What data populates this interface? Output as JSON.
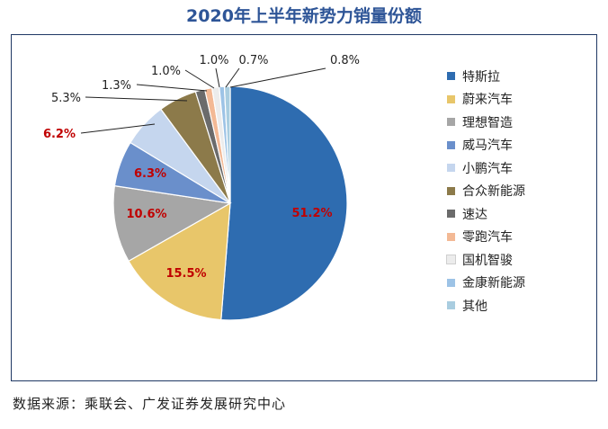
{
  "chart_data": {
    "type": "pie",
    "title": "2020年上半年新势力销量份额",
    "legend_position": "right",
    "slices": [
      {
        "name": "特斯拉",
        "value": 51.2,
        "label": "51.2%",
        "color": "#2e6cb0",
        "label_color": "#c00000",
        "label_bold": true
      },
      {
        "name": "蔚来汽车",
        "value": 15.5,
        "label": "15.5%",
        "color": "#e8c66a",
        "label_color": "#c00000",
        "label_bold": true
      },
      {
        "name": "理想智造",
        "value": 10.6,
        "label": "10.6%",
        "color": "#a6a6a6",
        "label_color": "#c00000",
        "label_bold": true
      },
      {
        "name": "威马汽车",
        "value": 6.3,
        "label": "6.3%",
        "color": "#6a8fcb",
        "label_color": "#c00000",
        "label_bold": true
      },
      {
        "name": "小鹏汽车",
        "value": 6.2,
        "label": "6.2%",
        "color": "#c5d6ee",
        "label_color": "#c00000",
        "label_bold": true
      },
      {
        "name": "合众新能源",
        "value": 5.3,
        "label": "5.3%",
        "color": "#8c7a4a",
        "label_color": "#222222",
        "label_bold": false
      },
      {
        "name": "速达",
        "value": 1.3,
        "label": "1.3%",
        "color": "#6b6b6b",
        "label_color": "#222222",
        "label_bold": false
      },
      {
        "name": "零跑汽车",
        "value": 1.0,
        "label": "1.0%",
        "color": "#f3b995",
        "label_color": "#222222",
        "label_bold": false
      },
      {
        "name": "国机智骏",
        "value": 1.0,
        "label": "1.0%",
        "color": "#ececec",
        "label_color": "#222222",
        "label_bold": false
      },
      {
        "name": "金康新能源",
        "value": 0.7,
        "label": "0.7%",
        "color": "#9dc3e6",
        "label_color": "#222222",
        "label_bold": false
      },
      {
        "name": "其他",
        "value": 0.8,
        "label": "0.8%",
        "color": "#a9cde0",
        "label_color": "#222222",
        "label_bold": false
      }
    ]
  },
  "source_note": "数据来源：乘联会、广发证券发展研究中心"
}
